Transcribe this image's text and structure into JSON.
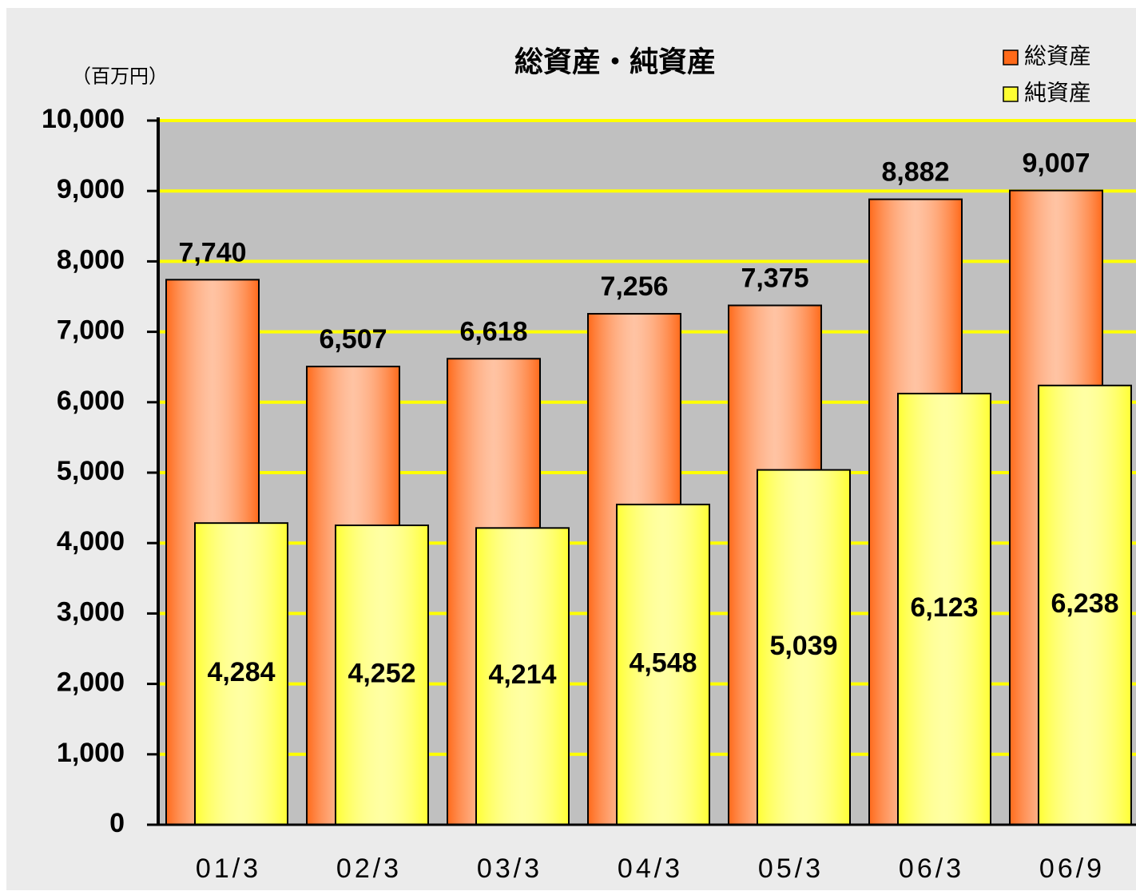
{
  "chart_data": {
    "type": "bar",
    "title": "総資産・純資産",
    "y_unit": "（百万円）",
    "categories": [
      "01/3",
      "02/3",
      "03/3",
      "04/3",
      "05/3",
      "06/3",
      "06/9"
    ],
    "series": [
      {
        "name": "総資産",
        "color": "#ff6a1a",
        "values": [
          7740,
          6507,
          6618,
          7256,
          7375,
          8882,
          9007
        ],
        "value_labels": [
          "7,740",
          "6,507",
          "6,618",
          "7,256",
          "7,375",
          "8,882",
          "9,007"
        ]
      },
      {
        "name": "純資産",
        "color": "#ffff33",
        "values": [
          4284,
          4252,
          4214,
          4548,
          5039,
          6123,
          6238
        ],
        "value_labels": [
          "4,284",
          "4,252",
          "4,214",
          "4,548",
          "5,039",
          "6,123",
          "6,238"
        ]
      }
    ],
    "ylim": [
      0,
      10000
    ],
    "yticks": [
      0,
      {
        "value": 1000,
        "label": "1,000"
      },
      {
        "value": 2000,
        "label": "2,000"
      },
      {
        "value": 3000,
        "label": "3,000"
      },
      {
        "value": 4000,
        "label": "4,000"
      },
      {
        "value": 5000,
        "label": "5,000"
      },
      {
        "value": 6000,
        "label": "6,000"
      },
      {
        "value": 7000,
        "label": "7,000"
      },
      {
        "value": 8000,
        "label": "8,000"
      },
      {
        "value": 9000,
        "label": "9,000"
      },
      {
        "value": 10000,
        "label": "10,000"
      }
    ],
    "grid": true,
    "legend": "top-right"
  }
}
